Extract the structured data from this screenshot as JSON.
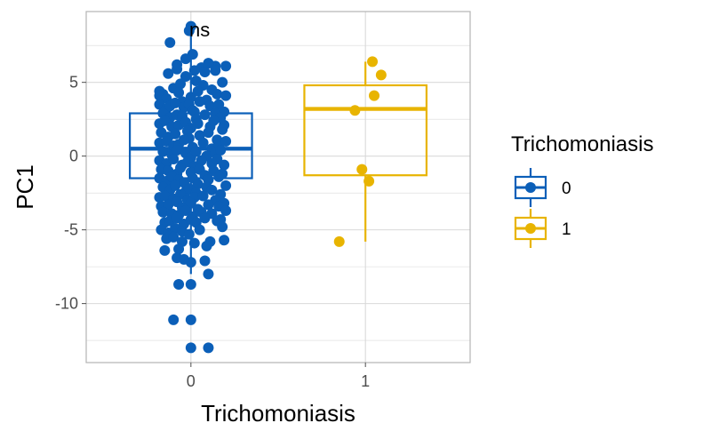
{
  "chart_data": {
    "type": "box-jitter",
    "xlabel": "Trichomoniasis",
    "ylabel": "PC1",
    "categories": [
      "0",
      "1"
    ],
    "xlim": [
      0.4,
      2.6
    ],
    "ylim": [
      -14,
      9.8
    ],
    "y_ticks": [
      5,
      0,
      -5,
      -10
    ],
    "y_tick_labels": [
      "5",
      "0",
      "-5",
      "-10"
    ],
    "grid": true,
    "annotation": "ns",
    "legend": {
      "title": "Trichomoniasis",
      "position": "right",
      "entries": [
        "0",
        "1"
      ]
    },
    "colors": {
      "0": "#0b5fb8",
      "1": "#e8b400",
      "grid": "#d9d9d9",
      "panel_border": "#b3b3b3"
    },
    "boxes": [
      {
        "group": "0",
        "lower_whisker": -8.0,
        "q1": -1.5,
        "median": 0.5,
        "q3": 2.9,
        "upper_whisker": 8.7
      },
      {
        "group": "1",
        "lower_whisker": -5.8,
        "q1": -1.3,
        "median": 3.2,
        "q3": 4.8,
        "upper_whisker": 6.4
      }
    ],
    "points": [
      {
        "group": "0",
        "x": [
          1.0,
          0.99,
          0.88,
          1.01,
          1.14,
          0.92,
          0.97,
          1.06,
          1.1,
          1.2,
          0.87,
          0.92,
          1.02,
          1.08,
          1.14,
          0.82,
          0.84,
          0.9,
          0.94,
          0.97,
          1.03,
          1.07,
          1.12,
          1.18,
          0.82,
          0.86,
          0.93,
          0.95,
          1.0,
          1.04,
          1.09,
          1.15,
          1.2,
          0.82,
          0.86,
          0.88,
          0.91,
          0.96,
          0.99,
          1.01,
          1.05,
          1.11,
          1.16,
          1.19,
          0.84,
          0.88,
          0.92,
          0.95,
          1.02,
          1.03,
          1.08,
          1.14,
          1.17,
          0.82,
          0.85,
          0.89,
          0.93,
          0.97,
          1.0,
          1.04,
          1.11,
          1.13,
          1.19,
          0.83,
          0.87,
          0.91,
          0.98,
          0.99,
          1.05,
          1.1,
          1.15,
          1.18,
          0.82,
          0.86,
          0.9,
          0.93,
          0.96,
          1.01,
          1.07,
          1.12,
          1.16,
          1.2,
          0.84,
          0.89,
          0.92,
          0.97,
          1.0,
          1.03,
          1.09,
          1.14,
          1.17,
          0.82,
          0.86,
          0.9,
          0.95,
          0.98,
          1.02,
          1.06,
          1.12,
          1.15,
          1.19,
          0.83,
          0.87,
          0.92,
          0.94,
          1.0,
          1.05,
          1.08,
          1.13,
          1.18,
          0.82,
          0.86,
          0.89,
          0.93,
          0.96,
          1.01,
          1.04,
          1.1,
          1.16,
          1.2,
          0.84,
          0.88,
          0.91,
          0.97,
          0.99,
          1.03,
          1.09,
          1.12,
          1.17,
          0.82,
          0.85,
          0.9,
          0.94,
          0.98,
          1.02,
          1.07,
          1.14,
          1.19,
          0.83,
          0.87,
          0.92,
          0.95,
          1.0,
          1.04,
          1.1,
          1.16,
          1.2,
          0.84,
          0.89,
          0.93,
          0.97,
          1.01,
          1.06,
          1.12,
          1.17,
          0.85,
          0.88,
          0.92,
          0.96,
          1.0,
          1.03,
          1.08,
          1.15,
          1.18,
          0.83,
          0.87,
          0.91,
          0.95,
          0.99,
          1.05,
          1.11,
          1.19,
          0.86,
          0.9,
          0.95,
          1.02,
          1.09,
          0.85,
          0.93,
          1.0,
          1.08,
          0.92,
          0.96,
          1.1,
          0.93,
          1.0,
          0.9,
          1.0,
          1.0,
          1.1
        ],
        "y": [
          8.8,
          8.5,
          7.7,
          6.9,
          6.1,
          6.2,
          6.6,
          6.0,
          6.3,
          6.1,
          5.6,
          5.9,
          5.8,
          5.7,
          5.8,
          4.4,
          4.2,
          4.6,
          4.9,
          5.4,
          5.1,
          4.8,
          4.5,
          5.0,
          4.1,
          3.9,
          4.3,
          3.7,
          4.0,
          4.4,
          3.8,
          4.2,
          4.1,
          3.5,
          3.2,
          3.4,
          3.6,
          3.3,
          3.5,
          3.1,
          3.7,
          3.4,
          3.5,
          3.0,
          2.9,
          2.6,
          2.8,
          2.7,
          3.0,
          2.5,
          2.8,
          2.9,
          2.6,
          2.2,
          2.4,
          2.0,
          2.1,
          2.3,
          1.9,
          2.2,
          2.0,
          2.4,
          2.1,
          1.6,
          1.3,
          1.5,
          1.7,
          1.2,
          1.4,
          1.6,
          1.1,
          1.8,
          0.9,
          1.0,
          0.7,
          0.8,
          1.1,
          0.6,
          0.9,
          0.5,
          0.8,
          1.0,
          0.3,
          0.1,
          0.4,
          0.2,
          -0.1,
          0.3,
          0.0,
          0.2,
          0.4,
          -0.3,
          -0.5,
          -0.2,
          -0.6,
          -0.4,
          -0.7,
          -0.3,
          -0.5,
          -0.2,
          -0.6,
          -0.9,
          -1.0,
          -1.2,
          -0.8,
          -1.1,
          -0.9,
          -1.3,
          -1.0,
          -1.2,
          -1.5,
          -1.7,
          -1.4,
          -1.6,
          -1.8,
          -1.5,
          -1.9,
          -1.6,
          -1.4,
          -2.0,
          -2.1,
          -2.3,
          -2.0,
          -2.4,
          -2.2,
          -2.5,
          -2.1,
          -2.3,
          -2.6,
          -2.8,
          -2.7,
          -2.9,
          -2.6,
          -3.0,
          -2.8,
          -2.7,
          -3.0,
          -3.2,
          -3.4,
          -3.3,
          -3.1,
          -3.5,
          -3.2,
          -3.6,
          -3.3,
          -3.4,
          -3.7,
          -3.8,
          -3.9,
          -4.0,
          -3.7,
          -4.1,
          -3.8,
          -3.9,
          -4.3,
          -4.5,
          -4.4,
          -4.2,
          -4.6,
          -4.3,
          -4.5,
          -4.2,
          -4.4,
          -4.8,
          -5.0,
          -5.2,
          -4.9,
          -5.1,
          -5.3,
          -5.0,
          -5.8,
          -5.7,
          -5.6,
          -5.5,
          -5.8,
          -5.9,
          -6.1,
          -6.4,
          -6.3,
          -7.2,
          -7.1,
          -6.9,
          -7.0,
          -8.0,
          -8.7,
          -8.7,
          -11.1,
          -11.1,
          -13.0,
          -13.0
        ],
        "radius": 6
      },
      {
        "group": "1",
        "x": [
          2.04,
          2.09,
          2.05,
          1.94,
          1.98,
          2.02,
          1.85
        ],
        "y": [
          6.4,
          5.5,
          4.1,
          3.1,
          -0.9,
          -1.7,
          -5.8
        ],
        "radius": 6
      }
    ]
  }
}
